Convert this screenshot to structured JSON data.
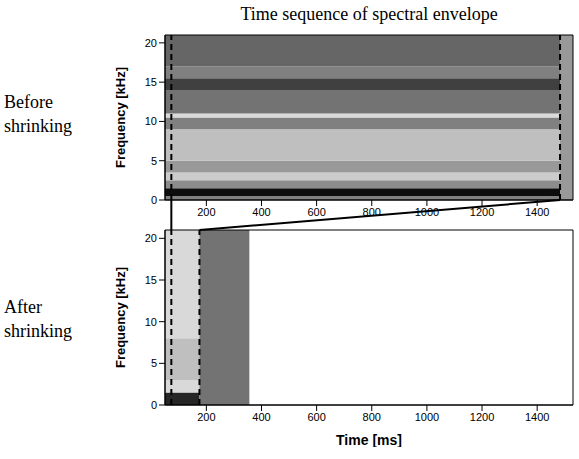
{
  "title": "Time sequence of spectral envelope",
  "chart_data": [
    {
      "type": "heatmap",
      "subtitle": "Before shrinking",
      "y_label": "Frequency [kHz]",
      "xlim": [
        50,
        1530
      ],
      "xticks": [
        200,
        400,
        600,
        800,
        1000,
        1200,
        1400
      ],
      "ylim": [
        0,
        21
      ],
      "yticks": [
        0,
        5,
        10,
        15,
        20
      ],
      "markers": [
        73,
        1483
      ],
      "cells": [
        [
          50,
          1483,
          0,
          0.5,
          0.5
        ],
        [
          50,
          1483,
          0.5,
          1.5,
          0.05
        ],
        [
          50,
          1483,
          1.5,
          2.5,
          0.55
        ],
        [
          50,
          1483,
          2.5,
          3.5,
          0.8
        ],
        [
          50,
          1483,
          3.5,
          5,
          0.6
        ],
        [
          50,
          1483,
          5,
          9,
          0.75
        ],
        [
          50,
          1483,
          9,
          10.5,
          0.5
        ],
        [
          50,
          1483,
          10.5,
          11,
          0.85
        ],
        [
          50,
          1483,
          11,
          14,
          0.45
        ],
        [
          50,
          1483,
          14,
          15.5,
          0.25
        ],
        [
          50,
          1483,
          15.5,
          17,
          0.5
        ],
        [
          50,
          1483,
          17,
          21,
          0.4
        ],
        [
          1483,
          1530,
          0,
          21,
          0.6
        ]
      ]
    },
    {
      "type": "heatmap",
      "subtitle": "After shrinking",
      "x_label": "Time [ms]",
      "y_label": "Frequency [kHz]",
      "xlim": [
        50,
        1530
      ],
      "xticks": [
        200,
        400,
        600,
        800,
        1000,
        1200,
        1400
      ],
      "ylim": [
        0,
        21
      ],
      "yticks": [
        0,
        5,
        10,
        15,
        20
      ],
      "markers": [
        73,
        175
      ],
      "cells": [
        [
          50,
          175,
          0,
          1.5,
          0.15
        ],
        [
          50,
          175,
          1.5,
          3,
          0.85
        ],
        [
          50,
          175,
          3,
          8,
          0.75
        ],
        [
          50,
          175,
          8,
          21,
          0.85
        ],
        [
          175,
          356,
          0,
          21,
          0.45
        ]
      ]
    }
  ]
}
